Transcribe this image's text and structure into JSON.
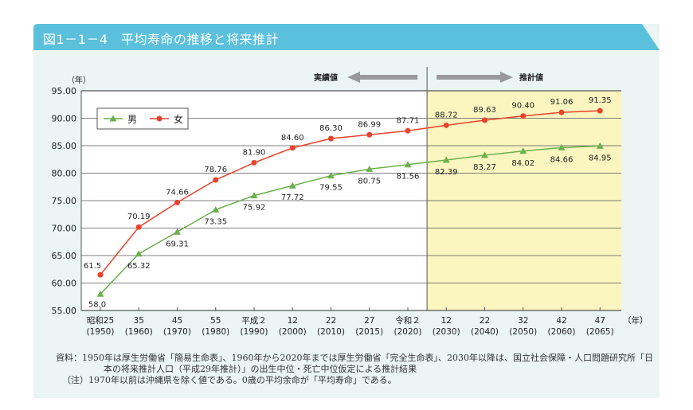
{
  "header": {
    "title": "図1－1－4　平均寿命の推移と将来推計"
  },
  "chart_data": {
    "type": "line",
    "title": "",
    "ylabel": "（年）",
    "xunit": "（年）",
    "ylim": [
      55,
      95
    ],
    "yticks": [
      "95.00",
      "90.00",
      "85.00",
      "80.00",
      "75.00",
      "70.00",
      "65.00",
      "60.00",
      "55.00"
    ],
    "categories": [
      [
        "昭和25",
        "(1950)"
      ],
      [
        "35",
        "(1960)"
      ],
      [
        "45",
        "(1970)"
      ],
      [
        "55",
        "(1980)"
      ],
      [
        "平成２",
        "(1990)"
      ],
      [
        "12",
        "(2000)"
      ],
      [
        "22",
        "(2010)"
      ],
      [
        "27",
        "(2015)"
      ],
      [
        "令和２",
        "(2020)"
      ],
      [
        "12",
        "(2030)"
      ],
      [
        "22",
        "(2040)"
      ],
      [
        "32",
        "(2050)"
      ],
      [
        "42",
        "(2060)"
      ],
      [
        "47",
        "(2065)"
      ]
    ],
    "series": [
      {
        "name": "男",
        "color": "#6ab04c",
        "marker": "triangle",
        "values": [
          58.0,
          65.32,
          69.31,
          73.35,
          75.92,
          77.72,
          79.55,
          80.75,
          81.56,
          82.39,
          83.27,
          84.02,
          84.66,
          84.95
        ],
        "labels": [
          "58.0",
          "65.32",
          "69.31",
          "73.35",
          "75.92",
          "77.72",
          "79.55",
          "80.75",
          "81.56",
          "82.39",
          "83.27",
          "84.02",
          "84.66",
          "84.95"
        ]
      },
      {
        "name": "女",
        "color": "#e8432e",
        "marker": "circle",
        "values": [
          61.5,
          70.19,
          74.66,
          78.76,
          81.9,
          84.6,
          86.3,
          86.99,
          87.71,
          88.72,
          89.63,
          90.4,
          91.06,
          91.35
        ],
        "labels": [
          "61.5",
          "70.19",
          "74.66",
          "78.76",
          "81.90",
          "84.60",
          "86.30",
          "86.99",
          "87.71",
          "88.72",
          "89.63",
          "90.40",
          "91.06",
          "91.35"
        ]
      }
    ],
    "annotations": {
      "actual": "実績値",
      "projected": "推計値"
    },
    "projection_shading": "#fbf5c0",
    "legend": "top-left",
    "grid": true
  },
  "notes": [
    "資料：1950年は厚生労働省「簡易生命表」、1960年から2020年までは厚生労働省「完全生命表」、2030年以降は、国立社会保障・人口問題研究所「日",
    "本の将来推計人口（平成29年推計）」の出生中位・死亡中位仮定による推計結果",
    "（注）1970年以前は沖縄県を除く値である。0歳の平均余命が「平均寿命」である。"
  ]
}
